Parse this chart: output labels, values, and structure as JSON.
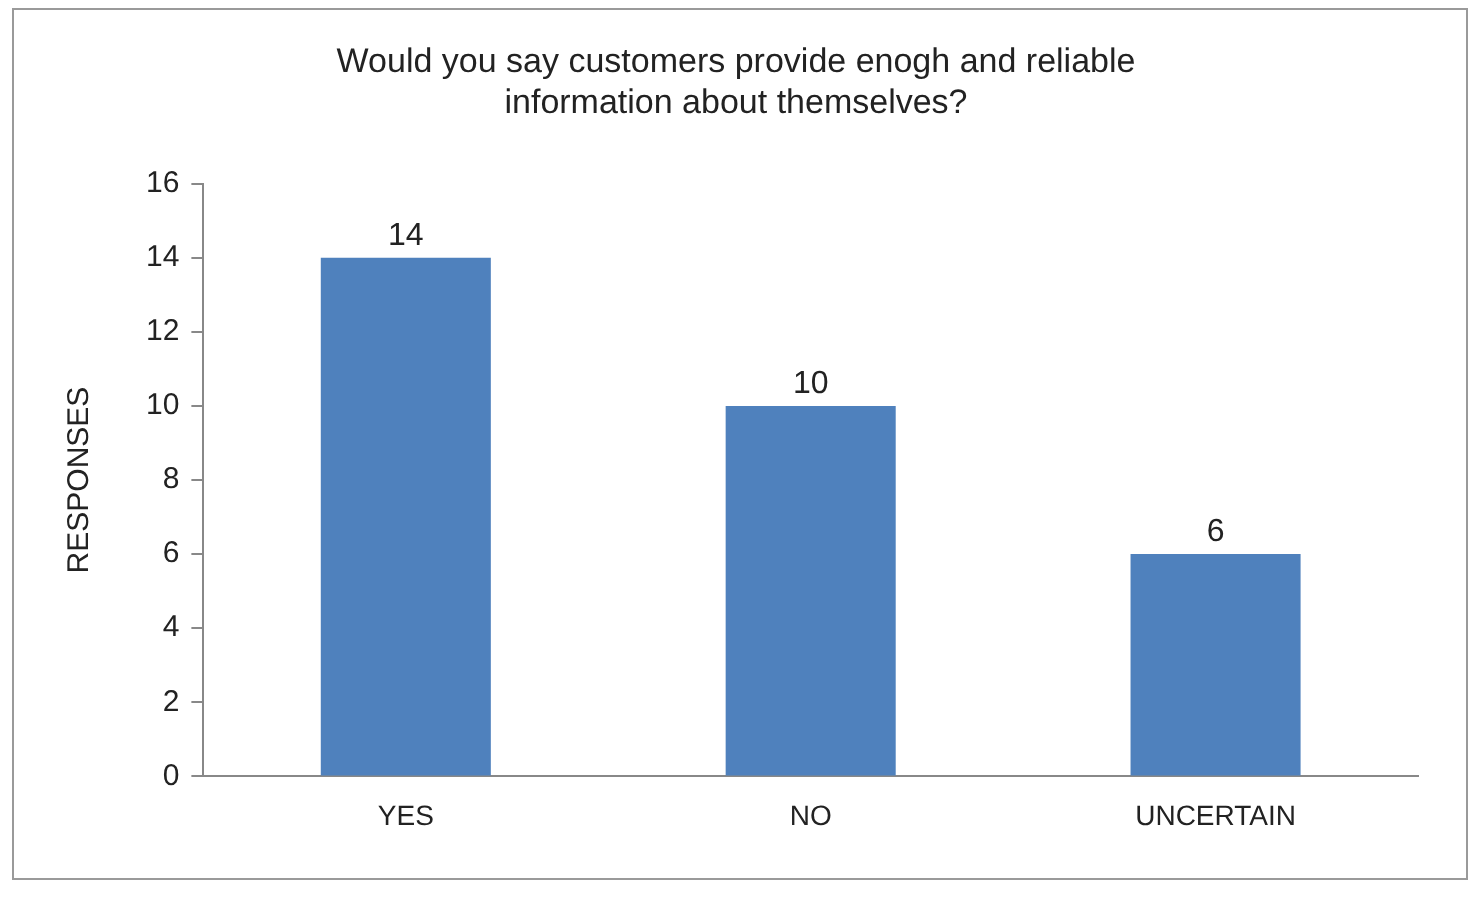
{
  "chart_data": {
    "type": "bar",
    "title": "Would you say customers provide enogh and reliable information about themselves?",
    "ylabel": "RESPONSES",
    "categories": [
      "YES",
      "NO",
      "UNCERTAIN"
    ],
    "values": [
      14,
      10,
      6
    ],
    "color": "#4f81bd",
    "ylim": [
      0,
      16
    ],
    "yticks": [
      0,
      2,
      4,
      6,
      8,
      10,
      12,
      14,
      16
    ],
    "grid": false,
    "legend": false,
    "data_labels": true
  }
}
